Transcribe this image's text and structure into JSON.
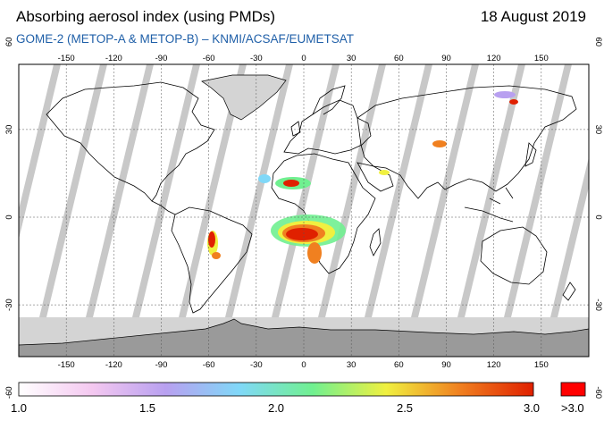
{
  "header": {
    "title": "Absorbing aerosol index (using PMDs)",
    "date": "18 August 2019",
    "subtitle": "GOME-2 (METOP-A & METOP-B)  –  KNMI/ACSAF/EUMETSAT"
  },
  "map": {
    "longitude_ticks": [
      "-150",
      "-120",
      "-90",
      "-60",
      "-30",
      "0",
      "30",
      "60",
      "90",
      "120",
      "150"
    ],
    "latitude_ticks": [
      "60",
      "30",
      "0",
      "-30",
      "-60"
    ],
    "colors": {
      "ocean": "#ffffff",
      "land_outline": "#000000",
      "polar_mask": "#d4d4d4",
      "antarctica": "#9a9a9a",
      "swath_gap": "#c8c8c8",
      "grid": "#555555"
    },
    "plumes": [
      {
        "region": "Central Africa (Angola / Congo)",
        "intensity": "high"
      },
      {
        "region": "West Africa / Sahel",
        "intensity": "medium"
      },
      {
        "region": "South America (Bolivia / Brazil)",
        "intensity": "high"
      },
      {
        "region": "Siberia",
        "intensity": "medium"
      },
      {
        "region": "Arabian Peninsula",
        "intensity": "low"
      }
    ]
  },
  "colorbar": {
    "labels": [
      "1.0",
      "1.5",
      "2.0",
      "2.5",
      "3.0"
    ],
    "values": [
      1.0,
      1.5,
      2.0,
      2.5,
      3.0
    ],
    "overflow_label": ">3.0",
    "overflow_color": "#ff0000",
    "gradient_stops": [
      "#ffffff",
      "#f4c8f0",
      "#b8a0f0",
      "#80d8f8",
      "#70f090",
      "#f0f040",
      "#f08020",
      "#e02000"
    ]
  }
}
